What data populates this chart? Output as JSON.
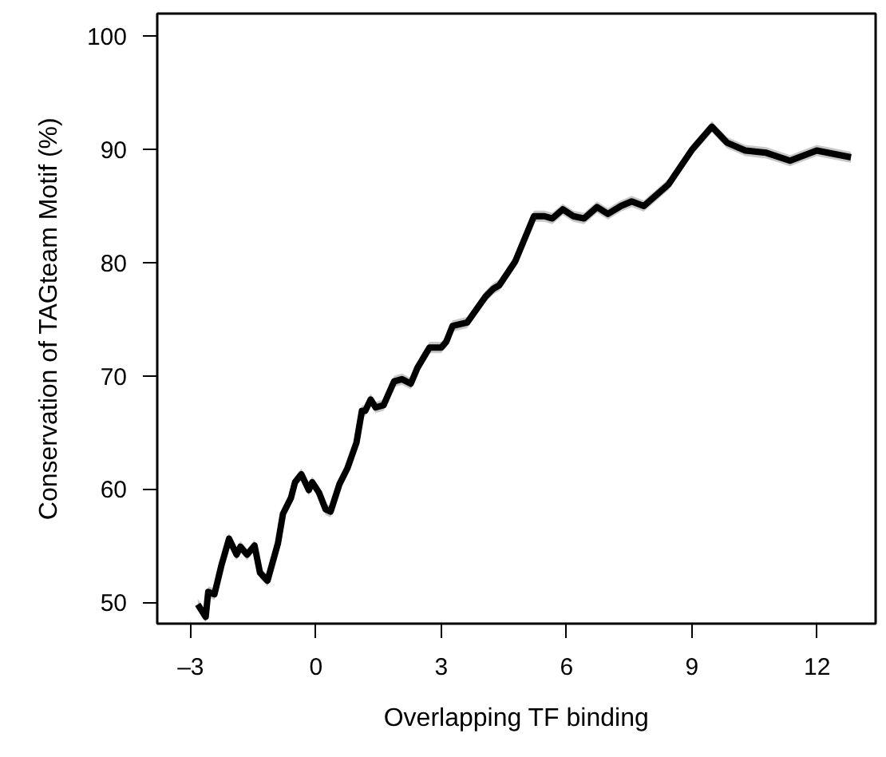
{
  "chart_data": {
    "type": "line",
    "xlabel": "Overlapping TF binding",
    "ylabel": "Conservation of TAGteam Motif (%)",
    "xlim": [
      -3.8,
      13.4
    ],
    "ylim": [
      48.1,
      102
    ],
    "xticks": [
      {
        "value": -3,
        "label": "–3"
      },
      0,
      3,
      6,
      9,
      12
    ],
    "yticks": [
      50,
      60,
      70,
      80,
      90,
      100
    ],
    "grid": false,
    "marker": "none",
    "line_style": "solid",
    "series": [
      {
        "color": "#000000",
        "x": [
          -2.83,
          -2.64,
          -2.58,
          -2.43,
          -2.26,
          -2.08,
          -1.9,
          -1.81,
          -1.65,
          -1.47,
          -1.34,
          -1.16,
          -0.91,
          -0.79,
          -0.6,
          -0.5,
          -0.35,
          -0.17,
          -0.09,
          0.07,
          0.23,
          0.35,
          0.56,
          0.75,
          0.97,
          1.1,
          1.18,
          1.31,
          1.43,
          1.62,
          1.87,
          2.06,
          2.27,
          2.43,
          2.72,
          3.0,
          3.12,
          3.27,
          3.62,
          4.06,
          4.25,
          4.39,
          4.77,
          5.22,
          5.47,
          5.66,
          5.91,
          6.16,
          6.42,
          6.73,
          6.99,
          7.3,
          7.56,
          7.85,
          8.44,
          9.01,
          9.48,
          9.84,
          10.28,
          10.78,
          11.35,
          11.99,
          12.81
        ],
        "values": [
          49.8,
          48.7,
          50.9,
          50.7,
          53.3,
          55.6,
          54.2,
          54.9,
          54.2,
          55.0,
          52.6,
          51.9,
          55.2,
          57.8,
          59.2,
          60.6,
          61.3,
          59.9,
          60.6,
          59.7,
          58.2,
          58.0,
          60.4,
          61.8,
          64.1,
          66.9,
          66.9,
          67.9,
          67.2,
          67.4,
          69.5,
          69.7,
          69.3,
          70.7,
          72.5,
          72.5,
          73.0,
          74.4,
          74.7,
          77.0,
          77.7,
          78.0,
          80.1,
          84.1,
          84.1,
          83.9,
          84.7,
          84.1,
          83.9,
          84.9,
          84.3,
          85.0,
          85.4,
          85.0,
          86.9,
          90.0,
          92.0,
          90.6,
          89.9,
          89.7,
          89.0,
          89.9,
          89.3
        ],
        "lower": [
          49.3,
          48.2,
          50.4,
          50.2,
          52.8,
          55.1,
          53.7,
          54.4,
          53.7,
          54.5,
          52.1,
          51.4,
          54.7,
          57.3,
          58.7,
          60.1,
          60.8,
          59.4,
          60.1,
          59.2,
          57.7,
          57.5,
          59.9,
          61.3,
          63.6,
          66.4,
          66.4,
          67.4,
          66.7,
          66.9,
          69.0,
          69.2,
          68.8,
          70.2,
          72.0,
          72.0,
          72.5,
          73.9,
          74.2,
          76.5,
          77.2,
          77.5,
          79.6,
          83.6,
          83.6,
          83.4,
          84.2,
          83.6,
          83.4,
          84.4,
          83.8,
          84.5,
          84.9,
          84.5,
          86.4,
          89.5,
          91.5,
          90.1,
          89.4,
          89.2,
          88.5,
          89.4,
          88.8
        ],
        "upper": [
          50.3,
          49.2,
          51.4,
          51.2,
          53.8,
          56.1,
          54.7,
          55.4,
          54.7,
          55.5,
          53.1,
          52.4,
          55.7,
          58.3,
          59.7,
          61.1,
          61.8,
          60.4,
          61.1,
          60.2,
          58.7,
          58.5,
          60.9,
          62.3,
          64.6,
          67.4,
          67.4,
          68.4,
          67.7,
          67.9,
          70.0,
          70.2,
          69.8,
          71.2,
          73.0,
          73.0,
          73.5,
          74.9,
          75.2,
          77.5,
          78.2,
          78.5,
          80.6,
          84.6,
          84.6,
          84.4,
          85.2,
          84.6,
          84.4,
          85.4,
          84.8,
          85.5,
          85.9,
          85.5,
          87.4,
          90.5,
          92.5,
          91.1,
          90.4,
          90.2,
          89.5,
          90.4,
          89.8
        ]
      }
    ]
  }
}
